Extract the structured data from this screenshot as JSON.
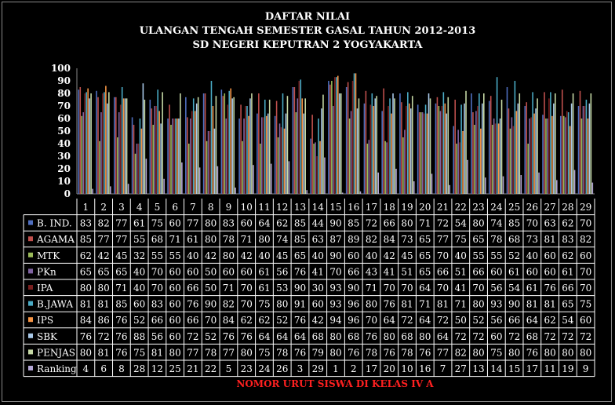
{
  "chart_data": {
    "type": "bar",
    "title": "DAFTAR NILAI",
    "subtitle_1": "ULANGAN TENGAH SEMESTER GASAL TAHUN 2012-2013",
    "subtitle_2": "SD NEGERI KEPUTRAN 2 YOGYAKARTA",
    "xlabel": "NOMOR URUT SISWA DI KELAS IV A",
    "ylim": [
      0,
      100
    ],
    "yticks": [
      "0",
      "10",
      "20",
      "30",
      "40",
      "50",
      "60",
      "70",
      "80",
      "90",
      "100"
    ],
    "grid": false,
    "legend": "data-table",
    "categories": [
      "1",
      "2",
      "3",
      "4",
      "5",
      "6",
      "7",
      "8",
      "9",
      "10",
      "11",
      "12",
      "13",
      "14",
      "15",
      "16",
      "17",
      "18",
      "19",
      "20",
      "21",
      "22",
      "23",
      "24",
      "25",
      "26",
      "27",
      "28",
      "29"
    ],
    "series": [
      {
        "name": "B. IND.",
        "color": "#4f6fc0",
        "values": [
          83,
          82,
          77,
          61,
          75,
          60,
          77,
          80,
          83,
          60,
          64,
          62,
          85,
          44,
          90,
          85,
          72,
          66,
          80,
          71,
          72,
          54,
          80,
          74,
          85,
          70,
          63,
          62,
          70
        ]
      },
      {
        "name": "AGAMA",
        "color": "#c0504d",
        "values": [
          85,
          77,
          77,
          55,
          68,
          71,
          61,
          80,
          78,
          71,
          80,
          74,
          85,
          63,
          87,
          89,
          82,
          84,
          73,
          65,
          77,
          75,
          65,
          78,
          68,
          73,
          81,
          83,
          82
        ]
      },
      {
        "name": "MTK",
        "color": "#9bbb59",
        "values": [
          62,
          42,
          45,
          32,
          55,
          55,
          40,
          42,
          80,
          42,
          40,
          45,
          65,
          40,
          90,
          60,
          40,
          42,
          45,
          65,
          70,
          40,
          55,
          55,
          52,
          40,
          60,
          62,
          60
        ]
      },
      {
        "name": "PKn",
        "color": "#8064a2",
        "values": [
          65,
          65,
          65,
          40,
          70,
          60,
          60,
          50,
          60,
          60,
          61,
          56,
          76,
          41,
          70,
          66,
          43,
          41,
          51,
          65,
          66,
          51,
          66,
          60,
          61,
          60,
          60,
          61,
          70
        ]
      },
      {
        "name": "IPA",
        "color": "#7a1f1f",
        "values": [
          80,
          80,
          71,
          40,
          70,
          60,
          66,
          50,
          71,
          70,
          61,
          53,
          90,
          30,
          93,
          90,
          71,
          70,
          70,
          64,
          70,
          41,
          70,
          56,
          54,
          61,
          76,
          66,
          70
        ]
      },
      {
        "name": "B.JAWA",
        "color": "#4bacc6",
        "values": [
          81,
          81,
          85,
          60,
          83,
          60,
          76,
          90,
          82,
          70,
          75,
          80,
          91,
          60,
          93,
          96,
          80,
          76,
          81,
          71,
          81,
          71,
          80,
          93,
          90,
          81,
          81,
          65,
          75
        ]
      },
      {
        "name": "IPS",
        "color": "#f79646",
        "values": [
          84,
          86,
          76,
          52,
          66,
          60,
          66,
          70,
          84,
          62,
          62,
          52,
          76,
          42,
          94,
          96,
          70,
          64,
          72,
          64,
          72,
          50,
          52,
          56,
          66,
          64,
          62,
          54,
          60
        ]
      },
      {
        "name": "SBK",
        "color": "#a8c8e8",
        "values": [
          76,
          72,
          76,
          88,
          56,
          60,
          72,
          52,
          76,
          76,
          64,
          64,
          64,
          68,
          80,
          68,
          76,
          80,
          68,
          80,
          64,
          72,
          72,
          60,
          72,
          68,
          72,
          72,
          72
        ]
      },
      {
        "name": "PENJAS",
        "color": "#c6d9a6",
        "values": [
          80,
          81,
          76,
          75,
          81,
          80,
          77,
          78,
          77,
          80,
          75,
          78,
          76,
          79,
          80,
          76,
          78,
          76,
          78,
          76,
          77,
          82,
          80,
          75,
          80,
          76,
          80,
          80,
          80
        ]
      },
      {
        "name": "Ranking",
        "color": "#b4a7d6",
        "values": [
          4,
          6,
          8,
          28,
          12,
          25,
          21,
          22,
          5,
          23,
          24,
          26,
          3,
          29,
          1,
          2,
          17,
          20,
          10,
          16,
          7,
          27,
          13,
          14,
          15,
          17,
          11,
          19,
          9
        ]
      }
    ]
  }
}
